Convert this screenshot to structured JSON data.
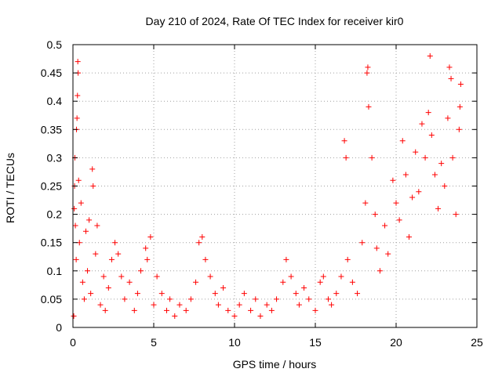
{
  "chart_data": {
    "type": "scatter",
    "title": "Day 210 of 2024, Rate Of TEC Index for receiver kir0",
    "xlabel": "GPS time / hours",
    "ylabel": "ROTI / TECUs",
    "xlim": [
      0,
      25
    ],
    "ylim": [
      0,
      0.5
    ],
    "x_ticks": [
      "0",
      "5",
      "10",
      "15",
      "20",
      "25"
    ],
    "y_ticks": [
      "0",
      "0.05",
      "0.1",
      "0.15",
      "0.2",
      "0.25",
      "0.3",
      "0.35",
      "0.4",
      "0.45",
      "0.5"
    ],
    "grid": true,
    "marker": "+",
    "color": "#ff0000",
    "series": [
      {
        "values": [
          [
            0.05,
            0.02
          ],
          [
            0.08,
            0.21
          ],
          [
            0.1,
            0.25
          ],
          [
            0.12,
            0.3
          ],
          [
            0.15,
            0.18
          ],
          [
            0.2,
            0.12
          ],
          [
            0.22,
            0.35
          ],
          [
            0.25,
            0.37
          ],
          [
            0.28,
            0.41
          ],
          [
            0.3,
            0.47
          ],
          [
            0.32,
            0.45
          ],
          [
            0.35,
            0.26
          ],
          [
            0.4,
            0.15
          ],
          [
            0.5,
            0.22
          ],
          [
            0.6,
            0.08
          ],
          [
            0.7,
            0.05
          ],
          [
            0.8,
            0.17
          ],
          [
            0.9,
            0.1
          ],
          [
            1.0,
            0.19
          ],
          [
            1.1,
            0.06
          ],
          [
            1.2,
            0.28
          ],
          [
            1.25,
            0.25
          ],
          [
            1.4,
            0.13
          ],
          [
            1.5,
            0.18
          ],
          [
            1.7,
            0.04
          ],
          [
            1.9,
            0.09
          ],
          [
            2.0,
            0.03
          ],
          [
            2.2,
            0.07
          ],
          [
            2.4,
            0.12
          ],
          [
            2.6,
            0.15
          ],
          [
            2.8,
            0.13
          ],
          [
            3.0,
            0.09
          ],
          [
            3.2,
            0.05
          ],
          [
            3.5,
            0.08
          ],
          [
            3.8,
            0.03
          ],
          [
            4.0,
            0.06
          ],
          [
            4.2,
            0.1
          ],
          [
            4.5,
            0.14
          ],
          [
            4.6,
            0.12
          ],
          [
            4.8,
            0.16
          ],
          [
            5.0,
            0.04
          ],
          [
            5.2,
            0.09
          ],
          [
            5.5,
            0.06
          ],
          [
            5.8,
            0.03
          ],
          [
            6.0,
            0.05
          ],
          [
            6.3,
            0.02
          ],
          [
            6.6,
            0.04
          ],
          [
            7.0,
            0.03
          ],
          [
            7.3,
            0.05
          ],
          [
            7.6,
            0.08
          ],
          [
            7.8,
            0.15
          ],
          [
            8.0,
            0.16
          ],
          [
            8.2,
            0.12
          ],
          [
            8.5,
            0.09
          ],
          [
            8.8,
            0.06
          ],
          [
            9.0,
            0.04
          ],
          [
            9.3,
            0.07
          ],
          [
            9.6,
            0.03
          ],
          [
            10.0,
            0.02
          ],
          [
            10.3,
            0.04
          ],
          [
            10.6,
            0.06
          ],
          [
            11.0,
            0.03
          ],
          [
            11.3,
            0.05
          ],
          [
            11.6,
            0.02
          ],
          [
            12.0,
            0.04
          ],
          [
            12.3,
            0.03
          ],
          [
            12.6,
            0.05
          ],
          [
            13.0,
            0.08
          ],
          [
            13.2,
            0.12
          ],
          [
            13.5,
            0.09
          ],
          [
            13.8,
            0.06
          ],
          [
            14.0,
            0.04
          ],
          [
            14.3,
            0.07
          ],
          [
            14.6,
            0.05
          ],
          [
            15.0,
            0.03
          ],
          [
            15.3,
            0.08
          ],
          [
            15.5,
            0.09
          ],
          [
            15.8,
            0.05
          ],
          [
            16.0,
            0.04
          ],
          [
            16.3,
            0.06
          ],
          [
            16.6,
            0.09
          ],
          [
            16.8,
            0.33
          ],
          [
            16.9,
            0.3
          ],
          [
            17.0,
            0.12
          ],
          [
            17.3,
            0.08
          ],
          [
            17.6,
            0.06
          ],
          [
            17.9,
            0.15
          ],
          [
            18.1,
            0.22
          ],
          [
            18.2,
            0.45
          ],
          [
            18.25,
            0.46
          ],
          [
            18.3,
            0.39
          ],
          [
            18.5,
            0.3
          ],
          [
            18.7,
            0.2
          ],
          [
            18.8,
            0.14
          ],
          [
            19.0,
            0.1
          ],
          [
            19.3,
            0.18
          ],
          [
            19.5,
            0.13
          ],
          [
            19.8,
            0.26
          ],
          [
            20.0,
            0.22
          ],
          [
            20.2,
            0.19
          ],
          [
            20.4,
            0.33
          ],
          [
            20.6,
            0.27
          ],
          [
            20.8,
            0.16
          ],
          [
            21.0,
            0.23
          ],
          [
            21.2,
            0.31
          ],
          [
            21.4,
            0.24
          ],
          [
            21.6,
            0.36
          ],
          [
            21.8,
            0.3
          ],
          [
            22.0,
            0.38
          ],
          [
            22.1,
            0.48
          ],
          [
            22.2,
            0.34
          ],
          [
            22.4,
            0.27
          ],
          [
            22.6,
            0.21
          ],
          [
            22.8,
            0.29
          ],
          [
            23.0,
            0.25
          ],
          [
            23.2,
            0.37
          ],
          [
            23.3,
            0.46
          ],
          [
            23.4,
            0.44
          ],
          [
            23.5,
            0.3
          ],
          [
            23.7,
            0.2
          ],
          [
            23.9,
            0.35
          ],
          [
            24.0,
            0.43
          ],
          [
            23.95,
            0.39
          ]
        ]
      }
    ]
  }
}
